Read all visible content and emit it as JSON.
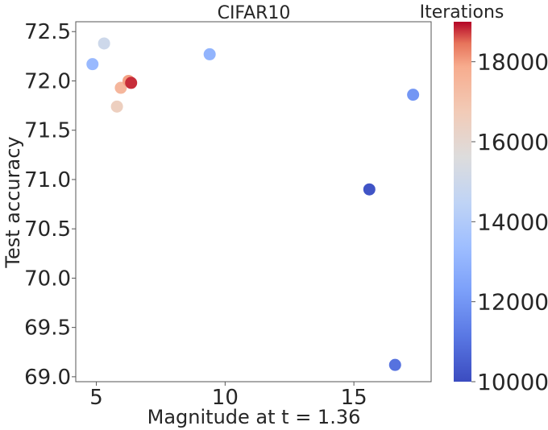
{
  "chart_data": {
    "type": "scatter",
    "title": "CIFAR10",
    "xlabel": "Magnitude at t = 1.36",
    "ylabel": "Test accuracy",
    "xlim": [
      4.2,
      18.0
    ],
    "ylim": [
      68.95,
      72.6
    ],
    "xticks": [
      5,
      10,
      15
    ],
    "yticks": [
      69.0,
      69.5,
      70.0,
      70.5,
      71.0,
      71.5,
      72.0,
      72.5
    ],
    "ytick_labels": [
      "69.0",
      "69.5",
      "70.0",
      "70.5",
      "71.0",
      "71.5",
      "72.0",
      "72.5"
    ],
    "grid": false,
    "colorbar": {
      "label": "Iterations",
      "min": 10000,
      "max": 19000,
      "ticks": [
        10000,
        12000,
        14000,
        16000,
        18000
      ],
      "colormap": "coolwarm"
    },
    "points": [
      {
        "x": 4.85,
        "y": 72.17,
        "iterations": 13200
      },
      {
        "x": 5.3,
        "y": 72.38,
        "iterations": 15000
      },
      {
        "x": 5.8,
        "y": 71.74,
        "iterations": 16500
      },
      {
        "x": 5.95,
        "y": 71.93,
        "iterations": 17500
      },
      {
        "x": 6.25,
        "y": 72.0,
        "iterations": 18000
      },
      {
        "x": 6.35,
        "y": 71.98,
        "iterations": 18800
      },
      {
        "x": 9.4,
        "y": 72.27,
        "iterations": 13000
      },
      {
        "x": 15.6,
        "y": 70.9,
        "iterations": 10200
      },
      {
        "x": 16.6,
        "y": 69.12,
        "iterations": 11000
      },
      {
        "x": 17.3,
        "y": 71.86,
        "iterations": 12000
      }
    ]
  }
}
